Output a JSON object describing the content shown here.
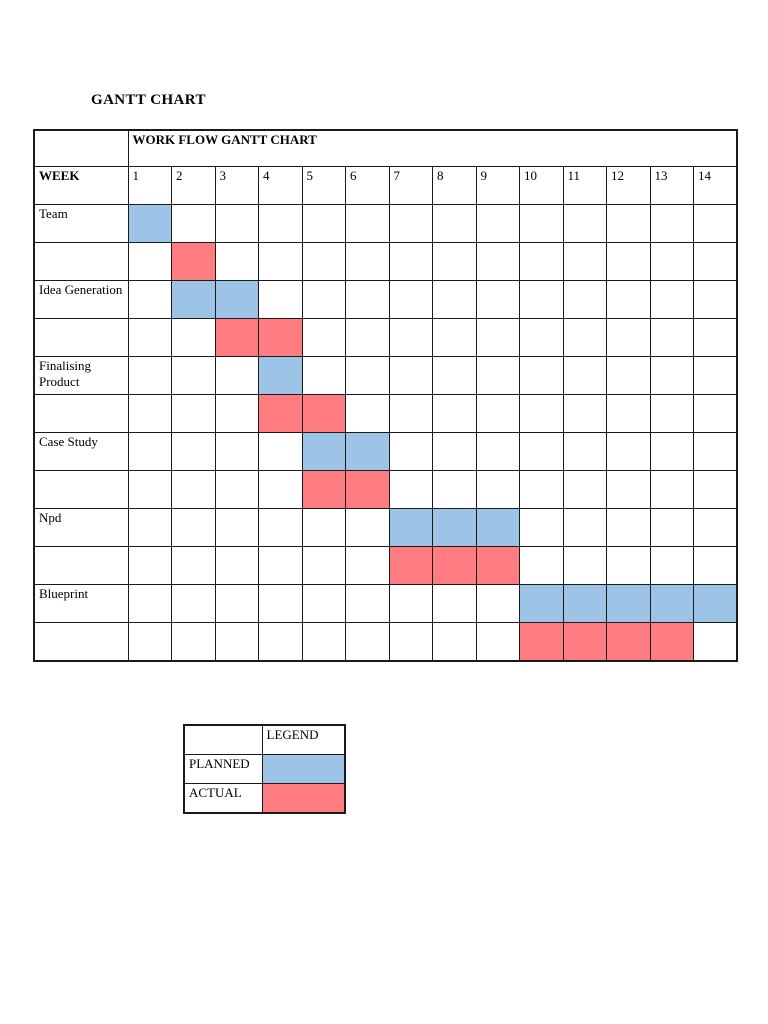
{
  "page": {
    "title": "GANTT CHART"
  },
  "gantt": {
    "header": "WORK FLOW GANTT CHART",
    "week_label": "WEEK",
    "weeks": [
      "1",
      "2",
      "3",
      "4",
      "5",
      "6",
      "7",
      "8",
      "9",
      "10",
      "11",
      "12",
      "13",
      "14"
    ],
    "rows": [
      {
        "label": "Team",
        "kind": "planned",
        "start": 1,
        "end": 1
      },
      {
        "label": "",
        "kind": "actual",
        "start": 2,
        "end": 2
      },
      {
        "label": "Idea Generation",
        "kind": "planned",
        "start": 2,
        "end": 3
      },
      {
        "label": "",
        "kind": "actual",
        "start": 3,
        "end": 4
      },
      {
        "label": "Finalising Product",
        "kind": "planned",
        "start": 4,
        "end": 4
      },
      {
        "label": "",
        "kind": "actual",
        "start": 4,
        "end": 5
      },
      {
        "label": "Case Study",
        "kind": "planned",
        "start": 5,
        "end": 6
      },
      {
        "label": "",
        "kind": "actual",
        "start": 5,
        "end": 6
      },
      {
        "label": "Npd",
        "kind": "planned",
        "start": 7,
        "end": 9
      },
      {
        "label": "",
        "kind": "actual",
        "start": 7,
        "end": 9
      },
      {
        "label": "Blueprint",
        "kind": "planned",
        "start": 10,
        "end": 14
      },
      {
        "label": "",
        "kind": "actual",
        "start": 10,
        "end": 13
      }
    ]
  },
  "legend": {
    "title": "LEGEND",
    "planned_label": "PLANNED",
    "actual_label": "ACTUAL"
  },
  "colors": {
    "planned": "#9DC3E6",
    "actual": "#FF7C80",
    "border": "#1a1a1a",
    "page_background": "#ffffff"
  },
  "chart_data": {
    "type": "table",
    "title": "WORK FLOW GANTT CHART",
    "x_label": "WEEK",
    "x": [
      1,
      2,
      3,
      4,
      5,
      6,
      7,
      8,
      9,
      10,
      11,
      12,
      13,
      14
    ],
    "series": [
      {
        "name": "Team",
        "planned_weeks": [
          1,
          1
        ],
        "actual_weeks": [
          2,
          2
        ]
      },
      {
        "name": "Idea Generation",
        "planned_weeks": [
          2,
          3
        ],
        "actual_weeks": [
          3,
          4
        ]
      },
      {
        "name": "Finalising Product",
        "planned_weeks": [
          4,
          4
        ],
        "actual_weeks": [
          4,
          5
        ]
      },
      {
        "name": "Case Study",
        "planned_weeks": [
          5,
          6
        ],
        "actual_weeks": [
          5,
          6
        ]
      },
      {
        "name": "Npd",
        "planned_weeks": [
          7,
          9
        ],
        "actual_weeks": [
          7,
          9
        ]
      },
      {
        "name": "Blueprint",
        "planned_weeks": [
          10,
          14
        ],
        "actual_weeks": [
          10,
          13
        ]
      }
    ],
    "legend": [
      {
        "label": "PLANNED",
        "color": "#9DC3E6"
      },
      {
        "label": "ACTUAL",
        "color": "#FF7C80"
      }
    ],
    "layout": {
      "grid": true,
      "legend_position": "bottom-left-table"
    }
  }
}
